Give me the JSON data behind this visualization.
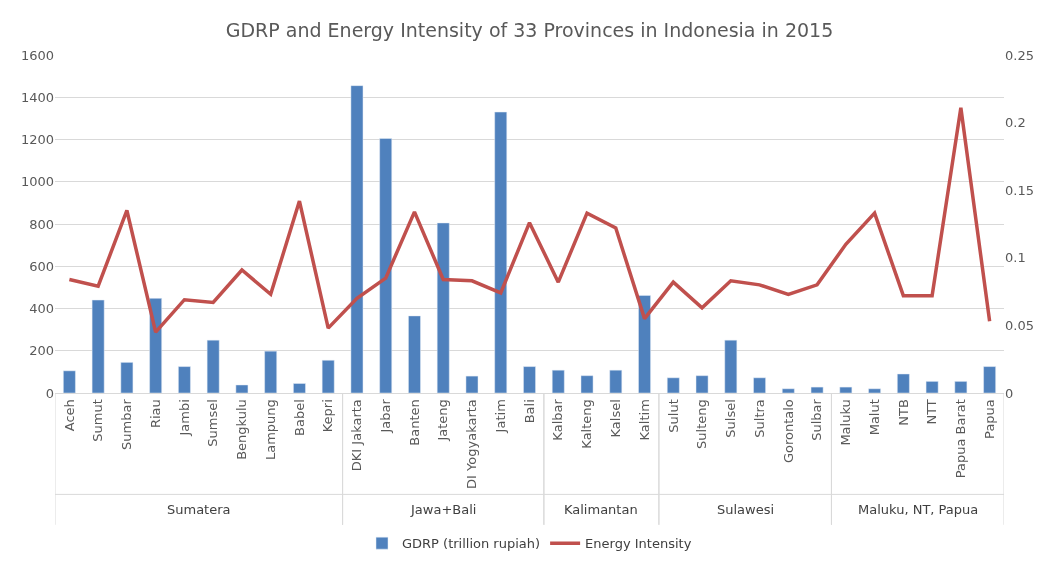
{
  "chart_data": {
    "type": "bar",
    "title": "GDRP and Energy Intensity of 33 Provinces in Indonesia in 2015",
    "categories": [
      "Aceh",
      "Sumut",
      "Sumbar",
      "Riau",
      "Jambi",
      "Sumsel",
      "Bengkulu",
      "Lampung",
      "Babel",
      "Kepri",
      "DKI Jakarta",
      "Jabar",
      "Banten",
      "Jateng",
      "DI Yogyakarta",
      "Jatim",
      "Bali",
      "Kalbar",
      "Kalteng",
      "Kalsel",
      "Kaltim",
      "Sulut",
      "Sulteng",
      "Sulsel",
      "Sultra",
      "Gorontalo",
      "Sulbar",
      "Maluku",
      "Malut",
      "NTB",
      "NTT",
      "Papua Barat",
      "Papua"
    ],
    "series": [
      {
        "name": "GDRP (trillion rupiah)",
        "color": "#4f81bd",
        "values": [
          105,
          440,
          145,
          448,
          125,
          250,
          38,
          198,
          45,
          155,
          1455,
          1205,
          365,
          805,
          80,
          1330,
          125,
          108,
          82,
          108,
          462,
          72,
          82,
          250,
          72,
          20,
          28,
          28,
          20,
          90,
          55,
          55,
          125
        ]
      },
      {
        "name": "Energy Intensity",
        "type": "line",
        "axis": "y2",
        "color": "#c0504d",
        "values": [
          0.084,
          0.079,
          0.135,
          0.045,
          0.069,
          0.067,
          0.091,
          0.073,
          0.142,
          0.048,
          0.07,
          0.085,
          0.134,
          0.084,
          0.083,
          0.074,
          0.126,
          0.082,
          0.133,
          0.122,
          0.055,
          0.082,
          0.063,
          0.083,
          0.08,
          0.073,
          0.08,
          0.11,
          0.133,
          0.072,
          0.072,
          0.211,
          0.053
        ]
      }
    ],
    "annotations": [
      "Sumatera",
      "Jawa+Bali",
      "Kalimantan",
      "Sulawesi",
      "Maluku, NT, Papua"
    ],
    "ylim": [
      0,
      1600
    ],
    "yticks": [
      0,
      200,
      400,
      600,
      800,
      1000,
      1200,
      1400,
      1600
    ],
    "y2lim": [
      0,
      0.25
    ],
    "y2ticks": [
      0,
      0.05,
      0.1,
      0.15,
      0.2,
      0.25
    ],
    "grid": "y",
    "legend": "bottom",
    "marker": "none",
    "line_style": "solid"
  }
}
